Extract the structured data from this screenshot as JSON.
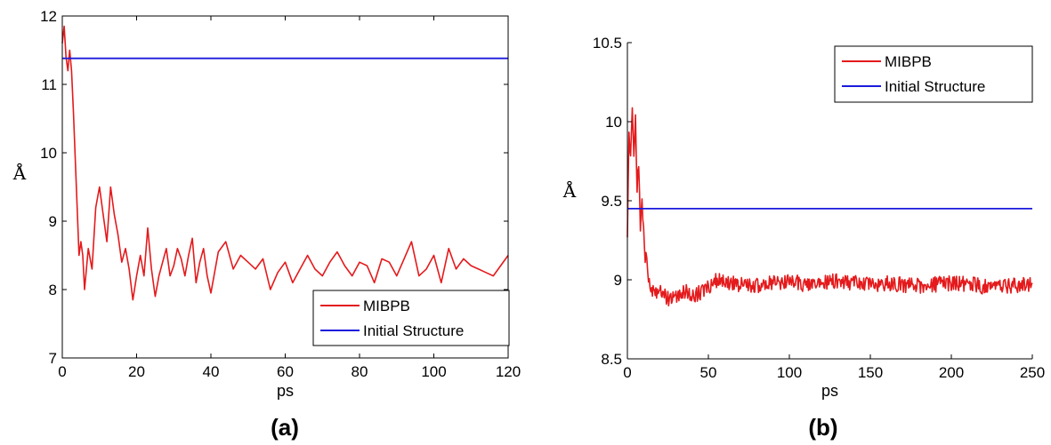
{
  "chart_data": [
    {
      "type": "line",
      "panel_label": "(a)",
      "xlabel": "ps",
      "ylabel": "Å",
      "xlim": [
        0,
        120
      ],
      "ylim": [
        7,
        12
      ],
      "xticks": [
        0,
        20,
        40,
        60,
        80,
        100,
        120
      ],
      "xtick_labels": [
        "0",
        "20",
        "40",
        "60",
        "80",
        "100",
        "120"
      ],
      "yticks": [
        7,
        8,
        9,
        10,
        11,
        12
      ],
      "ytick_labels": [
        "7",
        "8",
        "9",
        "10",
        "11",
        "12"
      ],
      "grid": false,
      "legend": "bottom-right",
      "series": [
        {
          "name": "MIBPB",
          "color": "#e41a1c",
          "x": [
            0,
            0.5,
            1,
            1.5,
            2,
            2.5,
            3,
            3.5,
            4,
            4.5,
            5,
            5.5,
            6,
            7,
            8,
            9,
            10,
            11,
            12,
            13,
            14,
            15,
            16,
            17,
            18,
            19,
            20,
            21,
            22,
            23,
            24,
            25,
            26,
            27,
            28,
            29,
            30,
            31,
            32,
            33,
            34,
            35,
            36,
            37,
            38,
            39,
            40,
            42,
            44,
            46,
            48,
            50,
            52,
            54,
            56,
            58,
            60,
            62,
            64,
            66,
            68,
            70,
            72,
            74,
            76,
            78,
            80,
            82,
            84,
            86,
            88,
            90,
            92,
            94,
            96,
            98,
            100,
            102,
            104,
            106,
            108,
            110,
            112,
            114,
            116,
            118,
            120
          ],
          "y": [
            11.6,
            11.85,
            11.4,
            11.2,
            11.5,
            11.2,
            10.6,
            9.9,
            9.2,
            8.5,
            8.7,
            8.5,
            8.0,
            8.6,
            8.3,
            9.2,
            9.5,
            9.1,
            8.7,
            9.5,
            9.1,
            8.8,
            8.4,
            8.6,
            8.3,
            7.85,
            8.2,
            8.5,
            8.2,
            8.9,
            8.3,
            7.9,
            8.2,
            8.4,
            8.6,
            8.2,
            8.35,
            8.6,
            8.45,
            8.2,
            8.5,
            8.75,
            8.1,
            8.4,
            8.6,
            8.2,
            7.95,
            8.55,
            8.7,
            8.3,
            8.5,
            8.4,
            8.3,
            8.45,
            8.0,
            8.25,
            8.4,
            8.1,
            8.3,
            8.5,
            8.3,
            8.2,
            8.4,
            8.55,
            8.35,
            8.2,
            8.4,
            8.35,
            8.1,
            8.45,
            8.4,
            8.2,
            8.45,
            8.7,
            8.2,
            8.3,
            8.5,
            8.1,
            8.6,
            8.3,
            8.45,
            8.35,
            8.3,
            8.25,
            8.2,
            8.35,
            8.5
          ]
        },
        {
          "name": "Initial Structure",
          "color": "#1a1adc",
          "x": [
            0,
            120
          ],
          "y": [
            11.38,
            11.38
          ]
        }
      ]
    },
    {
      "type": "line",
      "panel_label": "(b)",
      "xlabel": "ps",
      "ylabel": "Å",
      "xlim": [
        0,
        250
      ],
      "ylim": [
        8.5,
        10.5
      ],
      "xticks": [
        0,
        50,
        100,
        150,
        200,
        250
      ],
      "xtick_labels": [
        "0",
        "50",
        "100",
        "150",
        "200",
        "250"
      ],
      "yticks": [
        8.5,
        9,
        9.5,
        10,
        10.5
      ],
      "ytick_labels": [
        "8.5",
        "9",
        "9.5",
        "10",
        "10.5"
      ],
      "grid": false,
      "legend": "top-right",
      "series": [
        {
          "name": "MIBPB",
          "color": "#e41a1c",
          "x": [
            0,
            1,
            2,
            3,
            4,
            5,
            6,
            7,
            8,
            9,
            10,
            11,
            12,
            13,
            15,
            18,
            20,
            25,
            30,
            35,
            40,
            45,
            50,
            55,
            60,
            70,
            80,
            90,
            100,
            110,
            120,
            130,
            140,
            150,
            160,
            170,
            180,
            190,
            200,
            210,
            220,
            230,
            240,
            250
          ],
          "y": [
            9.3,
            9.9,
            9.75,
            10.05,
            9.8,
            10.0,
            9.6,
            9.7,
            9.35,
            9.55,
            9.3,
            9.1,
            9.15,
            9.0,
            8.95,
            8.9,
            8.92,
            8.88,
            8.9,
            8.93,
            8.9,
            8.92,
            8.95,
            9.0,
            8.98,
            8.97,
            8.96,
            8.98,
            8.99,
            8.97,
            8.98,
            8.99,
            8.98,
            8.97,
            8.98,
            8.97,
            8.96,
            8.97,
            8.98,
            8.97,
            8.96,
            8.97,
            8.96,
            8.98
          ],
          "noise": 0.05
        },
        {
          "name": "Initial Structure",
          "color": "#1a1adc",
          "x": [
            0,
            250
          ],
          "y": [
            9.45,
            9.45
          ]
        }
      ]
    }
  ]
}
